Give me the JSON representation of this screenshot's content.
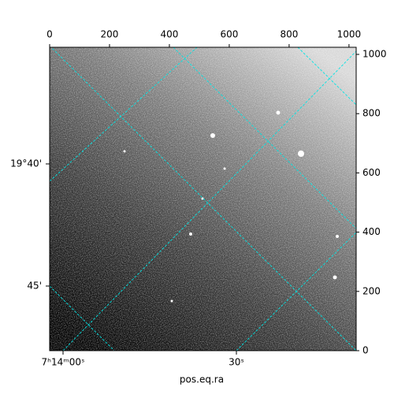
{
  "chart_data": {
    "type": "image",
    "xlabel": "pos.eq.ra",
    "xlim": [
      0,
      1024
    ],
    "xticks": [
      0,
      200,
      400,
      600,
      800,
      1000
    ],
    "ylim": [
      0,
      1024
    ],
    "yticks": [
      0,
      200,
      400,
      600,
      800,
      1000
    ],
    "ra_tick_labels": [
      "7ʰ14ᵐ00ˢ",
      "30ˢ"
    ],
    "dec_tick_labels": [
      "19°40'",
      "45'"
    ],
    "grid_color": "#00e5e5"
  }
}
